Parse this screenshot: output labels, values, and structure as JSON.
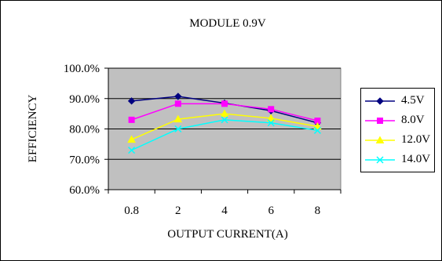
{
  "chart_data": {
    "type": "line",
    "title": "MODULE 0.9V",
    "xlabel": "OUTPUT CURRENT(A)",
    "ylabel": "EFFICIENCY",
    "categories": [
      "0.8",
      "2",
      "4",
      "6",
      "8"
    ],
    "ylim": [
      60,
      100
    ],
    "ytick_labels": [
      "60.0%",
      "70.0%",
      "80.0%",
      "90.0%",
      "100.0%"
    ],
    "yticks": [
      60,
      70,
      80,
      90,
      100
    ],
    "grid": true,
    "plot_background": "#c0c0c0",
    "legend_position": "right",
    "series": [
      {
        "name": "4.5V",
        "color": "#000080",
        "marker": "diamond",
        "values": [
          89.2,
          90.7,
          88.5,
          86.0,
          82.0
        ]
      },
      {
        "name": "8.0V",
        "color": "#ff00ff",
        "marker": "square",
        "values": [
          83.0,
          88.3,
          88.3,
          86.5,
          82.7
        ]
      },
      {
        "name": "12.0V",
        "color": "#ffff00",
        "marker": "triangle",
        "values": [
          76.5,
          83.2,
          85.0,
          83.5,
          80.8
        ]
      },
      {
        "name": "14.0V",
        "color": "#00ffff",
        "marker": "x",
        "values": [
          73.0,
          80.0,
          83.0,
          82.0,
          79.5
        ]
      }
    ]
  }
}
